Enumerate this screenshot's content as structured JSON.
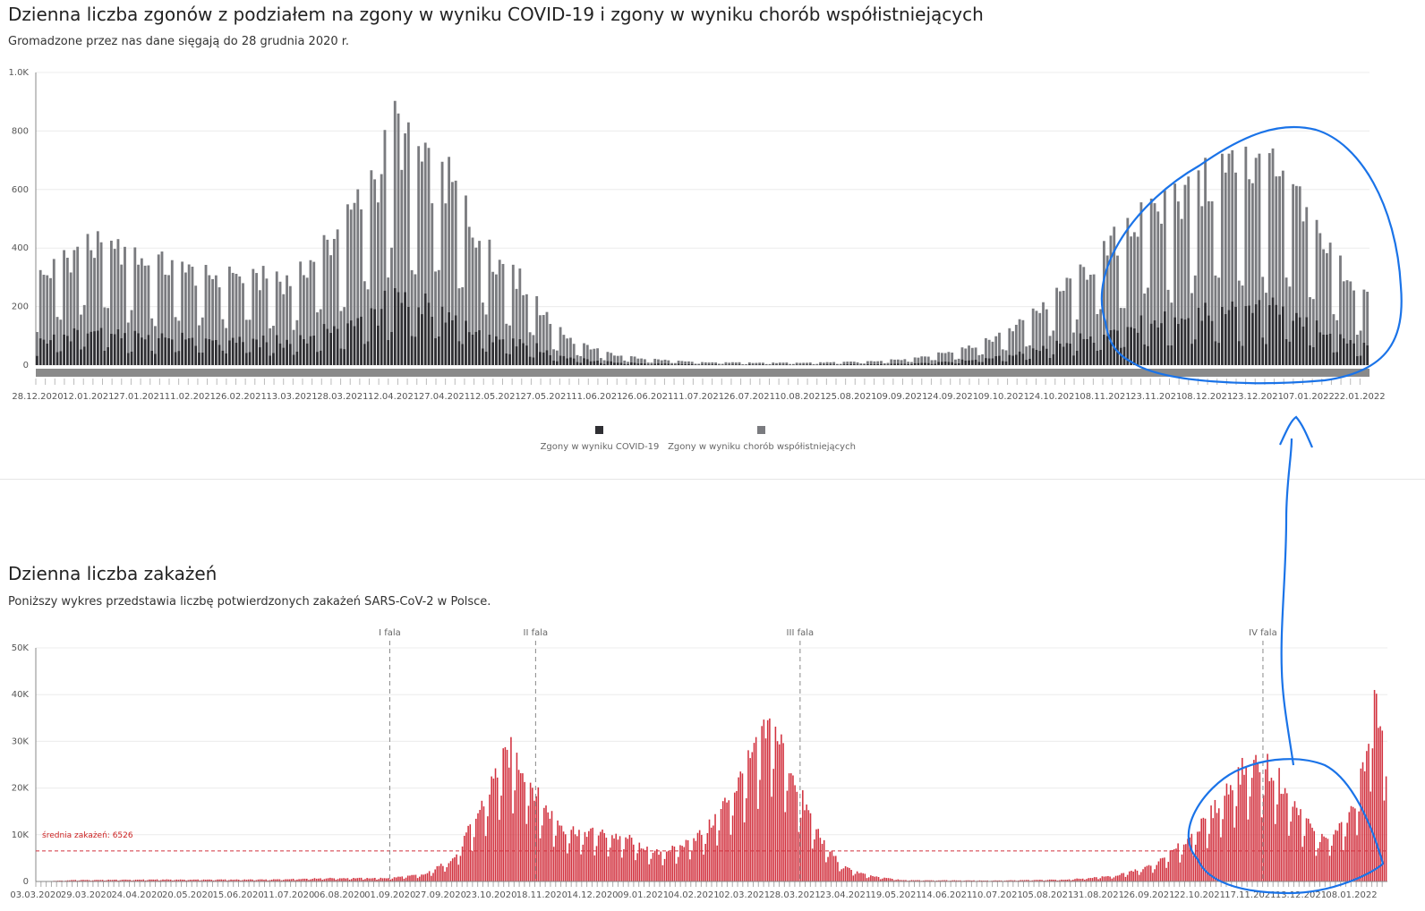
{
  "deaths_section": {
    "title": "Dzienna liczba zgonów z podziałem na zgony w wyniku COVID-19 i zgony w wyniku chorób współistniejących",
    "subtitle": "Gromadzone przez nas dane sięgają do 28 grudnia 2020 r."
  },
  "cases_section": {
    "title": "Dzienna liczba zakażeń",
    "subtitle": "Poniższy wykres przedstawia liczbę potwierdzonych zakażeń SARS-CoV-2 w Polsce."
  },
  "chart_data": [
    {
      "type": "bar",
      "stacked": true,
      "colors": {
        "covid": "#2f2f33",
        "comorbid": "#7a7b7f",
        "scrollbar": "#8a8a8a"
      },
      "y_ticks": [
        "0",
        "200",
        "400",
        "600",
        "800",
        "1.0K"
      ],
      "ylim": [
        0,
        1000
      ],
      "x_ticks": [
        "28.12.2020",
        "12.01.2021",
        "27.01.2021",
        "11.02.2021",
        "26.02.2021",
        "13.03.2021",
        "28.03.2021",
        "12.04.2021",
        "27.04.2021",
        "12.05.2021",
        "27.05.2021",
        "11.06.2021",
        "26.06.2021",
        "11.07.2021",
        "26.07.2021",
        "10.08.2021",
        "25.08.2021",
        "09.09.2021",
        "24.09.2021",
        "09.10.2021",
        "24.10.2021",
        "08.11.2021",
        "23.11.2021",
        "08.12.2021",
        "23.12.2021",
        "07.01.2022",
        "22.01.2022"
      ],
      "x_range": [
        "28.12.2020",
        "25.01.2022"
      ],
      "legend": [
        "Zgony w wyniku COVID-19",
        "Zgony w wyniku chorób współistniejących"
      ],
      "legend_position": "bottom-center",
      "totals_note": "total daily deaths (stack height), estimated from gridlines",
      "total_knots": [
        [
          0,
          300
        ],
        [
          14,
          430
        ],
        [
          30,
          380
        ],
        [
          45,
          330
        ],
        [
          58,
          320
        ],
        [
          75,
          300
        ],
        [
          88,
          460
        ],
        [
          100,
          650
        ],
        [
          106,
          860
        ],
        [
          112,
          720
        ],
        [
          123,
          640
        ],
        [
          133,
          420
        ],
        [
          145,
          280
        ],
        [
          152,
          150
        ],
        [
          160,
          80
        ],
        [
          168,
          45
        ],
        [
          178,
          25
        ],
        [
          195,
          10
        ],
        [
          225,
          8
        ],
        [
          245,
          12
        ],
        [
          260,
          25
        ],
        [
          275,
          60
        ],
        [
          288,
          120
        ],
        [
          300,
          230
        ],
        [
          312,
          360
        ],
        [
          322,
          470
        ],
        [
          332,
          560
        ],
        [
          345,
          640
        ],
        [
          355,
          720
        ],
        [
          365,
          690
        ],
        [
          374,
          560
        ],
        [
          382,
          420
        ],
        [
          394,
          230
        ]
      ],
      "covid_share": 0.28
    },
    {
      "type": "bar",
      "colors": {
        "bars": "#d2323f",
        "average": "#d2323f",
        "wave_lines": "#888888"
      },
      "y_ticks": [
        "0",
        "10K",
        "20K",
        "30K",
        "40K",
        "50K"
      ],
      "ylim": [
        0,
        50000
      ],
      "x_ticks": [
        "03.03.2020",
        "29.03.2020",
        "24.04.2020",
        "20.05.2020",
        "15.06.2020",
        "11.07.2020",
        "06.08.2020",
        "01.09.2020",
        "27.09.2020",
        "23.10.2020",
        "18.11.2020",
        "14.12.2020",
        "09.01.2021",
        "04.02.2021",
        "02.03.2021",
        "28.03.2021",
        "23.04.2021",
        "19.05.2021",
        "14.06.2021",
        "10.07.2021",
        "05.08.2021",
        "31.08.2021",
        "26.09.2021",
        "22.10.2021",
        "17.11.2021",
        "13.12.2021",
        "08.01.2022"
      ],
      "x_range": [
        "03.03.2020",
        "26.01.2022"
      ],
      "average_label": "średnia zakażeń: 6526",
      "average_value": 6526,
      "waves": [
        {
          "label": "I fala",
          "date": "01.09.2020"
        },
        {
          "label": "II fala",
          "date": "15.11.2020"
        },
        {
          "label": "III fala",
          "date": "31.03.2021"
        },
        {
          "label": "IV fala",
          "date": "24.11.2021"
        }
      ],
      "value_knots": [
        [
          0,
          0
        ],
        [
          20,
          300
        ],
        [
          60,
          400
        ],
        [
          120,
          400
        ],
        [
          150,
          700
        ],
        [
          180,
          700
        ],
        [
          200,
          1500
        ],
        [
          215,
          5000
        ],
        [
          228,
          15000
        ],
        [
          238,
          24000
        ],
        [
          244,
          27000
        ],
        [
          250,
          24000
        ],
        [
          260,
          16000
        ],
        [
          272,
          11000
        ],
        [
          290,
          10000
        ],
        [
          305,
          9000
        ],
        [
          318,
          6000
        ],
        [
          330,
          7000
        ],
        [
          345,
          11000
        ],
        [
          360,
          20000
        ],
        [
          372,
          29000
        ],
        [
          378,
          33000
        ],
        [
          385,
          27000
        ],
        [
          395,
          16000
        ],
        [
          405,
          8000
        ],
        [
          415,
          3000
        ],
        [
          428,
          1200
        ],
        [
          445,
          300
        ],
        [
          490,
          200
        ],
        [
          530,
          400
        ],
        [
          555,
          1200
        ],
        [
          575,
          3500
        ],
        [
          590,
          8000
        ],
        [
          602,
          13000
        ],
        [
          612,
          19000
        ],
        [
          622,
          24000
        ],
        [
          630,
          25000
        ],
        [
          638,
          22000
        ],
        [
          648,
          15000
        ],
        [
          660,
          9000
        ],
        [
          670,
          11000
        ],
        [
          678,
          16000
        ],
        [
          683,
          26000
        ],
        [
          687,
          38000
        ],
        [
          690,
          36000
        ],
        [
          694,
          30000
        ]
      ]
    }
  ],
  "annotations": {
    "color": "#1a73e8"
  }
}
